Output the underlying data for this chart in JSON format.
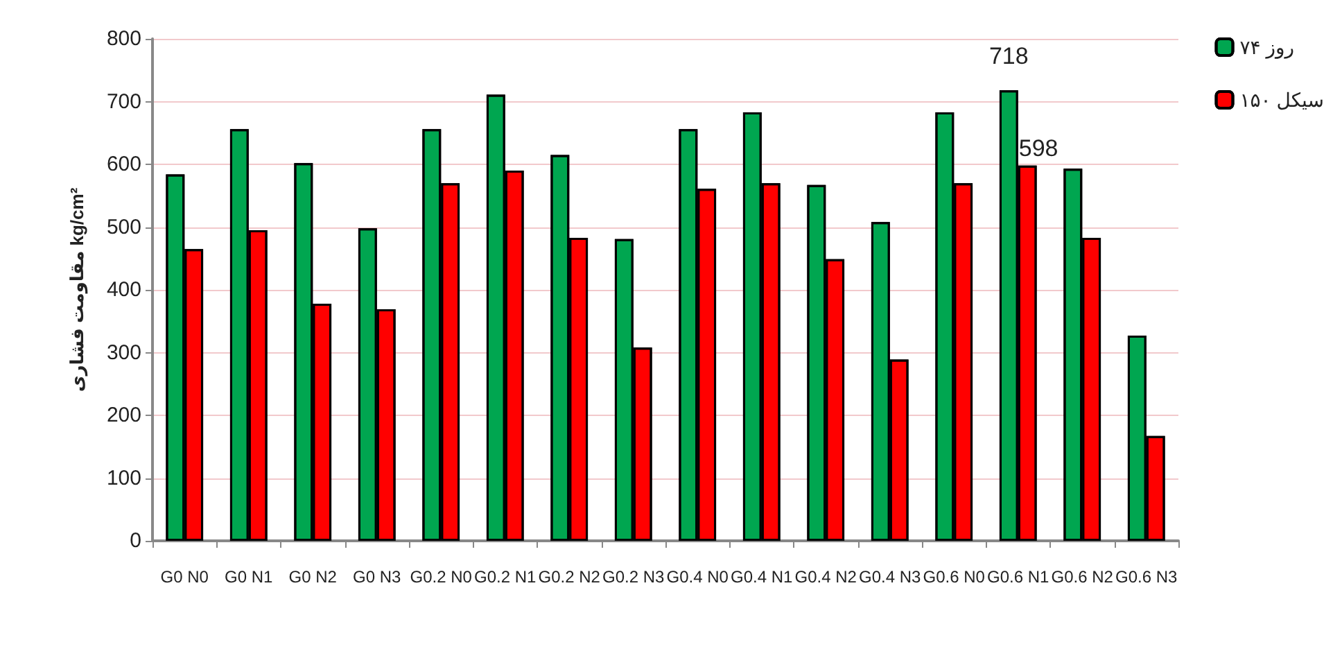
{
  "chart_data": {
    "type": "bar",
    "ylabel": "مقاومت فشاری kg/cm²",
    "categories": [
      "G0 N0",
      "G0 N1",
      "G0 N2",
      "G0 N3",
      "G0.2 N0",
      "G0.2 N1",
      "G0.2 N2",
      "G0.2 N3",
      "G0.4 N0",
      "G0.4 N1",
      "G0.4 N2",
      "G0.4 N3",
      "G0.6 N0",
      "G0.6 N1",
      "G0.6 N2",
      "G0.6 N3"
    ],
    "series": [
      {
        "name": "۷۴ روز",
        "color": "#00a650",
        "values": [
          584,
          656,
          602,
          498,
          656,
          711,
          615,
          481,
          656,
          683,
          567,
          508,
          683,
          718,
          593,
          327
        ],
        "value_labels": [
          null,
          null,
          null,
          null,
          null,
          null,
          null,
          null,
          null,
          null,
          null,
          null,
          null,
          "718",
          null,
          null
        ]
      },
      {
        "name": "۱۵۰ سیکل",
        "color": "#ff0000",
        "values": [
          465,
          495,
          378,
          369,
          570,
          590,
          483,
          308,
          561,
          570,
          449,
          289,
          570,
          598,
          483,
          167
        ],
        "value_labels": [
          null,
          null,
          null,
          null,
          null,
          null,
          null,
          null,
          null,
          null,
          null,
          null,
          null,
          "598",
          null,
          null
        ]
      }
    ],
    "ylim": [
      0,
      800
    ],
    "yticks": [
      0,
      100,
      200,
      300,
      400,
      500,
      600,
      700,
      800
    ],
    "grid": "y",
    "legend": "top right"
  }
}
